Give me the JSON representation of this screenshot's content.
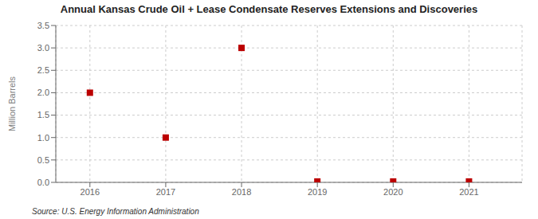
{
  "chart_data": {
    "type": "scatter",
    "title": "Annual Kansas Crude Oil + Lease Condensate Reserves Extensions and Discoveries",
    "ylabel": "Million Barrels",
    "annotations": [
      "Source: U.S. Energy Information Administration"
    ],
    "x": [
      2016,
      2017,
      2018,
      2019,
      2020,
      2021
    ],
    "values": [
      2.0,
      1.0,
      3.0,
      0.02,
      0.02,
      0.02
    ],
    "color": "#bb0000",
    "marker": "square",
    "grid": true,
    "xlim": [
      2015.55,
      2021.7
    ],
    "xticks": [
      2016,
      2017,
      2018,
      2019,
      2020,
      2021
    ],
    "ylim": [
      0.0,
      3.5
    ],
    "yticks": [
      {
        "value": 0,
        "label": "0.0"
      },
      0.5,
      {
        "value": 1,
        "label": "1.0"
      },
      1.5,
      {
        "value": 2,
        "label": "2.0"
      },
      2.5,
      {
        "value": 3,
        "label": "3.0"
      },
      3.5
    ]
  }
}
